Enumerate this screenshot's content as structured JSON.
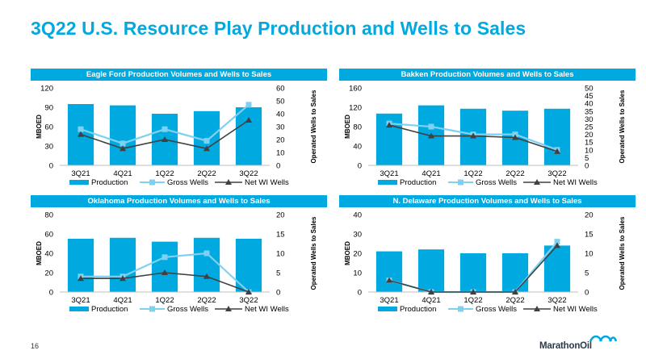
{
  "page": {
    "title": "3Q22 U.S. Resource Play Production and Wells to Sales",
    "page_number": "16",
    "logo_text": "MarathonOil"
  },
  "colors": {
    "accent": "#00a9e0",
    "production": "#00a9e0",
    "gross_wells": "#7fd1f1",
    "net_wells": "#404040"
  },
  "chart_data": [
    {
      "id": "eagle-ford",
      "type": "bar",
      "title": "Eagle Ford Production Volumes and Wells to Sales",
      "categories": [
        "3Q21",
        "4Q21",
        "1Q22",
        "2Q22",
        "3Q22"
      ],
      "ylabel": "MBOED",
      "y2label": "Operated Wells to Sales",
      "ylim": [
        0,
        120
      ],
      "yticks": [
        0,
        30,
        60,
        90,
        120
      ],
      "y2lim": [
        0,
        60
      ],
      "y2ticks": [
        0,
        10,
        20,
        30,
        40,
        50,
        60
      ],
      "series": [
        {
          "name": "Production",
          "type": "bar",
          "axis": "left",
          "values": [
            95,
            93,
            80,
            84,
            90
          ]
        },
        {
          "name": "Gross Wells",
          "type": "line",
          "axis": "right",
          "values": [
            28,
            17,
            28,
            19,
            47
          ]
        },
        {
          "name": "Net WI Wells",
          "type": "line",
          "axis": "right",
          "values": [
            24,
            13,
            20,
            13,
            35
          ]
        }
      ],
      "legend": "bottom"
    },
    {
      "id": "bakken",
      "type": "bar",
      "title": "Bakken Production Volumes and Wells to Sales",
      "categories": [
        "3Q21",
        "4Q21",
        "1Q22",
        "2Q22",
        "3Q22"
      ],
      "ylabel": "MBOED",
      "y2label": "Operated Wells to Sales",
      "ylim": [
        0,
        160
      ],
      "yticks": [
        0,
        40,
        80,
        120,
        160
      ],
      "y2lim": [
        0,
        50
      ],
      "y2ticks": [
        0,
        5,
        10,
        15,
        20,
        25,
        30,
        35,
        40,
        45,
        50
      ],
      "series": [
        {
          "name": "Production",
          "type": "bar",
          "axis": "left",
          "values": [
            107,
            124,
            117,
            113,
            117
          ]
        },
        {
          "name": "Gross Wells",
          "type": "line",
          "axis": "right",
          "values": [
            27,
            25,
            20,
            20,
            10
          ]
        },
        {
          "name": "Net WI Wells",
          "type": "line",
          "axis": "right",
          "values": [
            26,
            19,
            19,
            18,
            9
          ]
        }
      ],
      "legend": "bottom"
    },
    {
      "id": "oklahoma",
      "type": "bar",
      "title": "Oklahoma Production Volumes and Wells to Sales",
      "categories": [
        "3Q21",
        "4Q21",
        "1Q22",
        "2Q22",
        "3Q22"
      ],
      "ylabel": "MBOED",
      "y2label": "Operated Wells to Sales",
      "ylim": [
        0,
        80
      ],
      "yticks": [
        0,
        20,
        40,
        60,
        80
      ],
      "y2lim": [
        0,
        20
      ],
      "y2ticks": [
        0,
        5,
        10,
        15,
        20
      ],
      "series": [
        {
          "name": "Production",
          "type": "bar",
          "axis": "left",
          "values": [
            55,
            56,
            52,
            56,
            55
          ]
        },
        {
          "name": "Gross Wells",
          "type": "line",
          "axis": "right",
          "values": [
            4,
            4,
            9,
            10,
            0
          ]
        },
        {
          "name": "Net WI Wells",
          "type": "line",
          "axis": "right",
          "values": [
            3.5,
            3.5,
            5,
            4,
            0
          ]
        }
      ],
      "legend": "bottom"
    },
    {
      "id": "n-delaware",
      "type": "bar",
      "title": "N. Delaware Production Volumes and Wells to Sales",
      "categories": [
        "3Q21",
        "4Q21",
        "1Q22",
        "2Q22",
        "3Q22"
      ],
      "ylabel": "MBOED",
      "y2label": "Operated Wells to Sales",
      "ylim": [
        0,
        40
      ],
      "yticks": [
        0,
        10,
        20,
        30,
        40
      ],
      "y2lim": [
        0,
        20
      ],
      "y2ticks": [
        0,
        5,
        10,
        15,
        20
      ],
      "series": [
        {
          "name": "Production",
          "type": "bar",
          "axis": "left",
          "values": [
            21,
            22,
            20,
            20,
            24
          ]
        },
        {
          "name": "Gross Wells",
          "type": "line",
          "axis": "right",
          "values": [
            3,
            0,
            0,
            0,
            13
          ]
        },
        {
          "name": "Net WI Wells",
          "type": "line",
          "axis": "right",
          "values": [
            3,
            0,
            0,
            0,
            12
          ]
        }
      ],
      "legend": "bottom"
    }
  ]
}
